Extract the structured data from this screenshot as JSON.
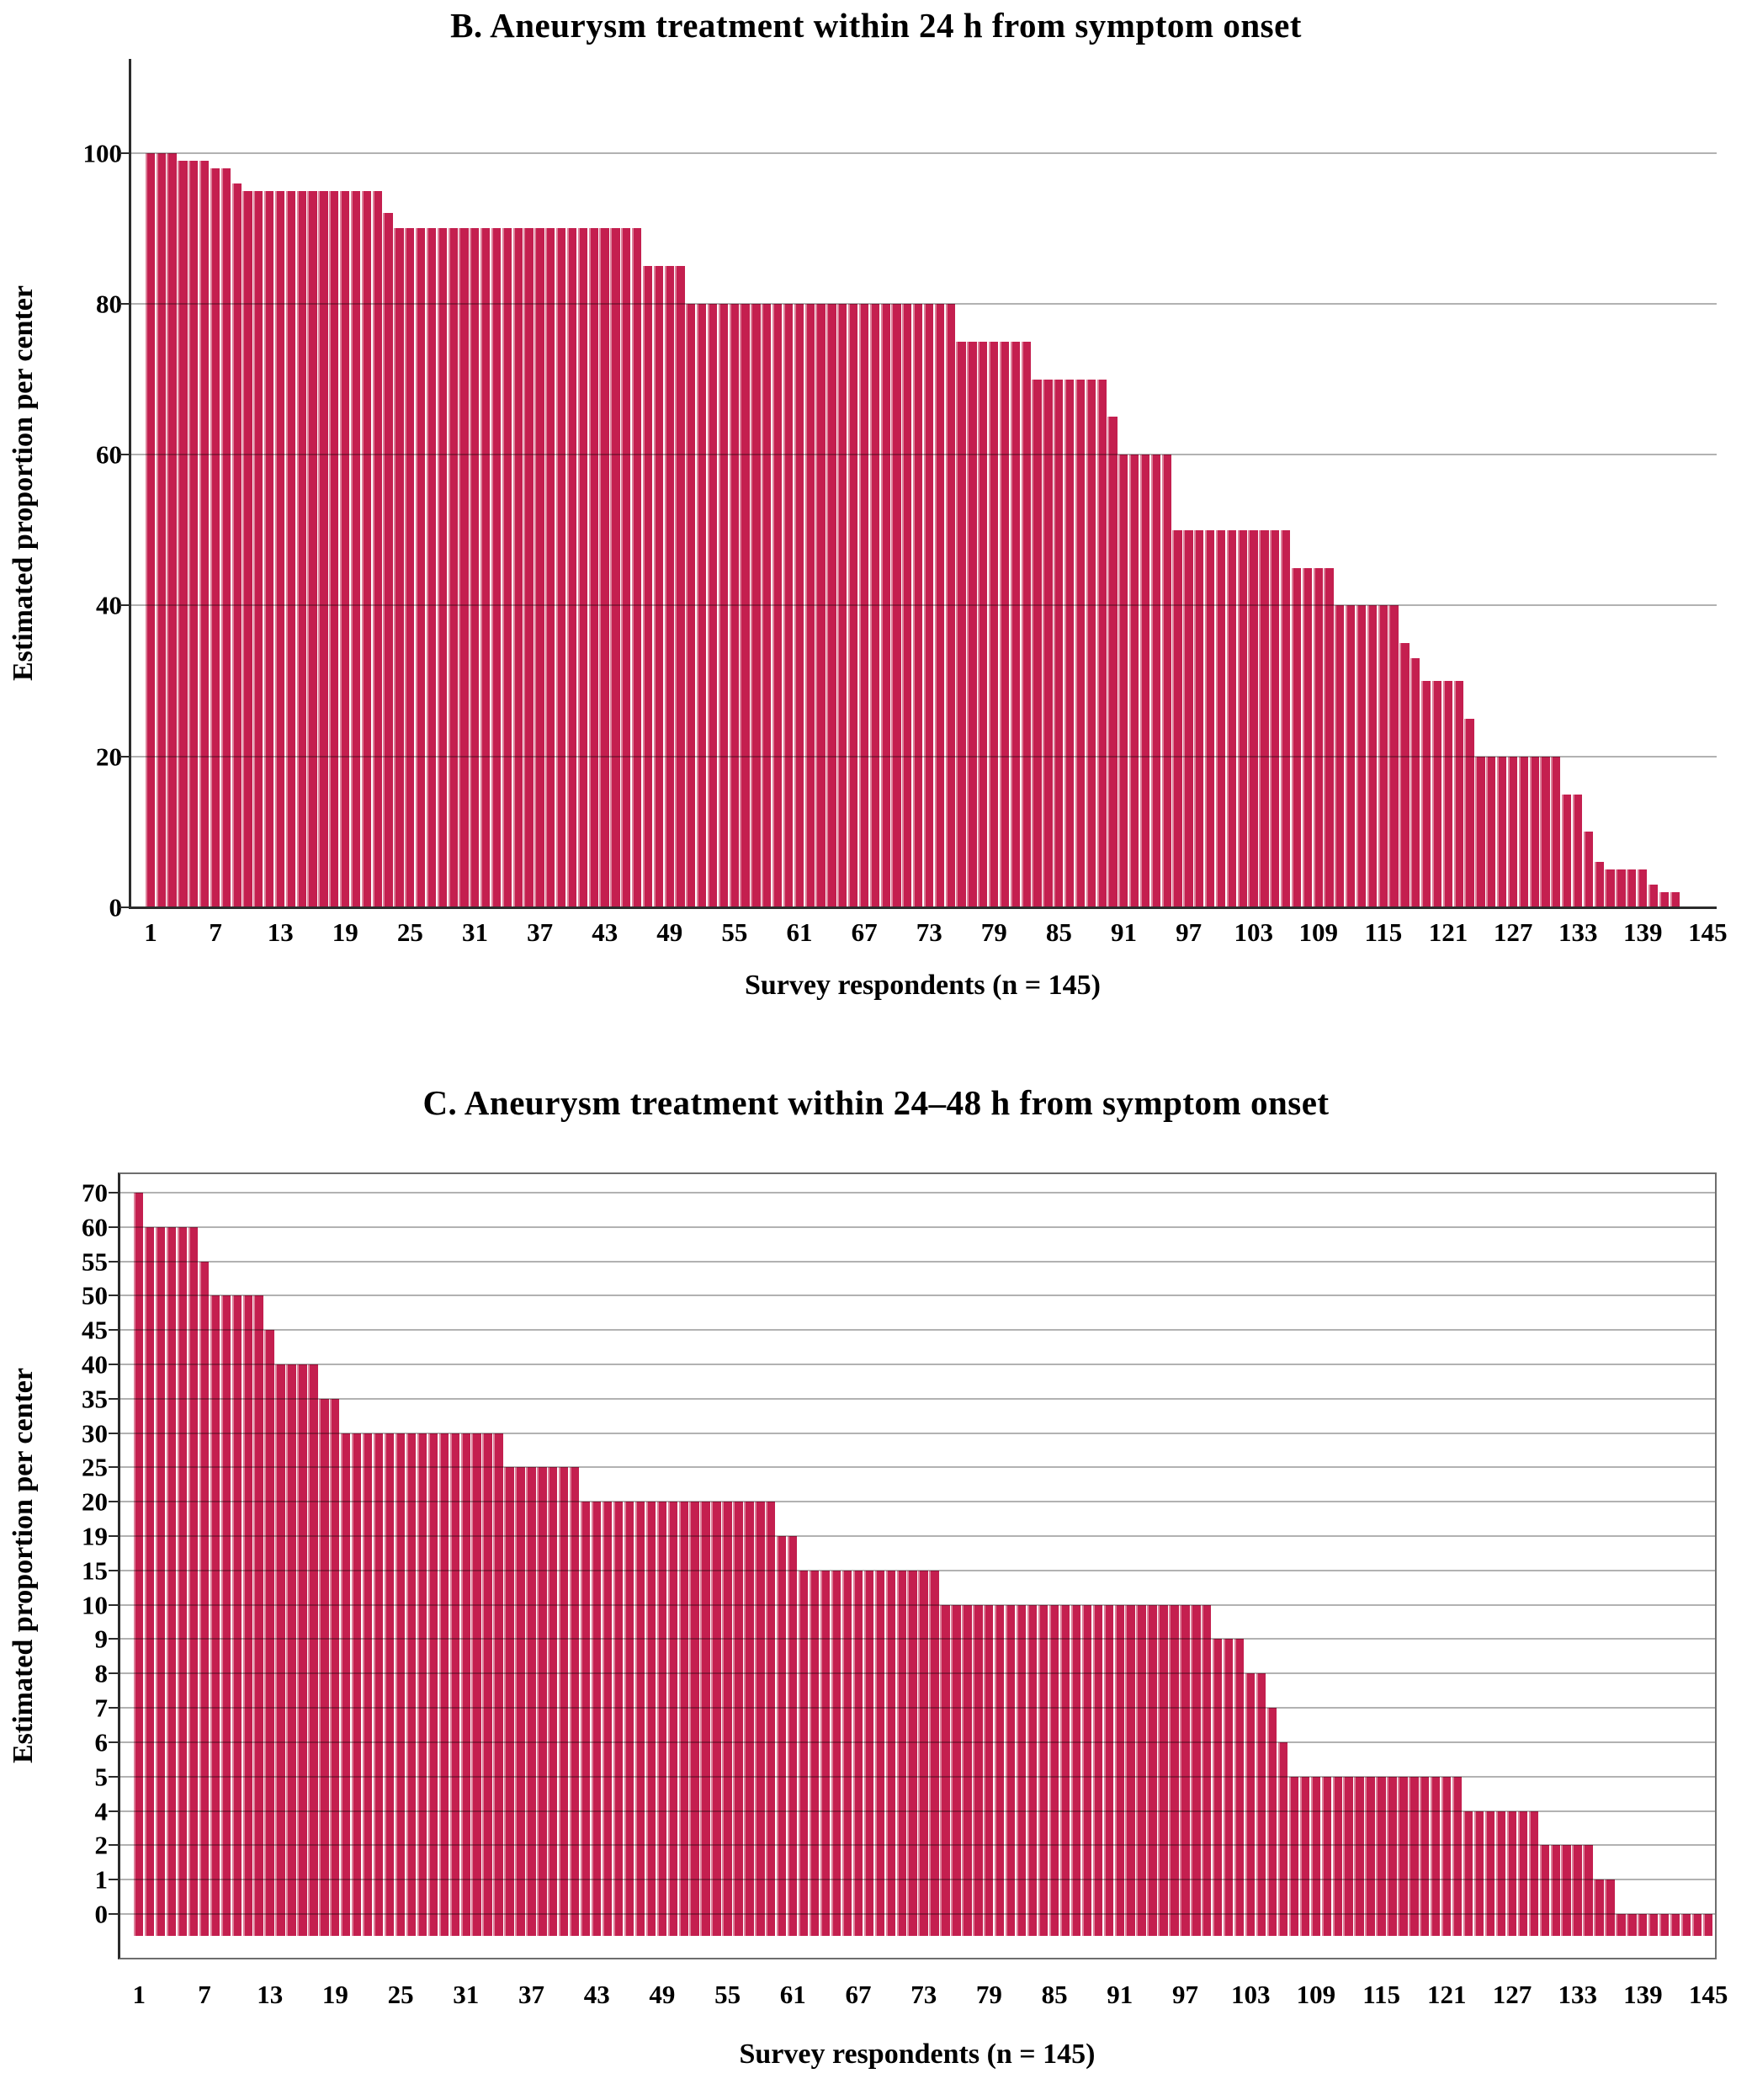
{
  "figure_type": "two-panel survey bar figure",
  "colors": {
    "bar_fill": "#c41f4f",
    "bar_edge_highlight": "#dc8099",
    "gridline": "#ababab",
    "axis": "#2b2b2b",
    "plot_border": "#6e6e6e",
    "background": "#ffffff",
    "text": "#000000"
  },
  "chart_data": [
    {
      "panel": "B",
      "type": "bar",
      "title": "B. Aneurysm treatment within 24 h from symptom onset",
      "xlabel": "Survey respondents (n = 145)",
      "ylabel": "Estimated proportion per center",
      "n_bars": 145,
      "x_tick_labels": [
        1,
        7,
        13,
        19,
        25,
        31,
        37,
        43,
        49,
        55,
        61,
        67,
        73,
        79,
        85,
        91,
        97,
        103,
        109,
        115,
        121,
        127,
        133,
        139,
        145
      ],
      "y_axis": {
        "style": "linear",
        "min": 0,
        "max": 100,
        "tick_labels": [
          0,
          20,
          40,
          60,
          80,
          100
        ],
        "grid": true
      },
      "legend": null,
      "values": [
        100,
        100,
        100,
        99,
        99,
        99,
        98,
        98,
        96,
        95,
        95,
        95,
        95,
        95,
        95,
        95,
        95,
        95,
        95,
        95,
        95,
        95,
        92,
        90,
        90,
        90,
        90,
        90,
        90,
        90,
        90,
        90,
        90,
        90,
        90,
        90,
        90,
        90,
        90,
        90,
        90,
        90,
        90,
        90,
        90,
        90,
        85,
        85,
        85,
        85,
        80,
        80,
        80,
        80,
        80,
        80,
        80,
        80,
        80,
        80,
        80,
        80,
        80,
        80,
        80,
        80,
        80,
        80,
        80,
        80,
        80,
        80,
        80,
        80,
        80,
        75,
        75,
        75,
        75,
        75,
        75,
        75,
        70,
        70,
        70,
        70,
        70,
        70,
        70,
        65,
        60,
        60,
        60,
        60,
        60,
        50,
        50,
        50,
        50,
        50,
        50,
        50,
        50,
        50,
        50,
        50,
        45,
        45,
        45,
        45,
        40,
        40,
        40,
        40,
        40,
        40,
        35,
        33,
        30,
        30,
        30,
        30,
        25,
        20,
        20,
        20,
        20,
        20,
        20,
        20,
        20,
        15,
        15,
        10,
        6,
        5,
        5,
        5,
        5,
        3,
        2,
        2,
        0,
        0,
        0
      ]
    },
    {
      "panel": "C",
      "type": "bar",
      "title": "C. Aneurysm treatment within 24–48 h from symptom onset",
      "xlabel": "Survey respondents (n = 145)",
      "ylabel": "Estimated proportion per center",
      "n_bars": 145,
      "x_tick_labels": [
        1,
        7,
        13,
        19,
        25,
        31,
        37,
        43,
        49,
        55,
        61,
        67,
        73,
        79,
        85,
        91,
        97,
        103,
        109,
        115,
        121,
        127,
        133,
        139,
        145
      ],
      "y_axis": {
        "style": "categorical",
        "tick_labels": [
          0,
          1,
          2,
          4,
          5,
          6,
          7,
          8,
          9,
          10,
          15,
          19,
          20,
          25,
          30,
          35,
          40,
          45,
          50,
          55,
          60,
          70
        ],
        "grid": true
      },
      "legend": null,
      "values": [
        70,
        60,
        60,
        60,
        60,
        60,
        55,
        50,
        50,
        50,
        50,
        50,
        45,
        40,
        40,
        40,
        40,
        35,
        35,
        30,
        30,
        30,
        30,
        30,
        30,
        30,
        30,
        30,
        30,
        30,
        30,
        30,
        30,
        30,
        25,
        25,
        25,
        25,
        25,
        25,
        25,
        20,
        20,
        20,
        20,
        20,
        20,
        20,
        20,
        20,
        20,
        20,
        20,
        20,
        20,
        20,
        20,
        20,
        20,
        19,
        19,
        15,
        15,
        15,
        15,
        15,
        15,
        15,
        15,
        15,
        15,
        15,
        15,
        15,
        10,
        10,
        10,
        10,
        10,
        10,
        10,
        10,
        10,
        10,
        10,
        10,
        10,
        10,
        10,
        10,
        10,
        10,
        10,
        10,
        10,
        10,
        10,
        10,
        10,
        9,
        9,
        9,
        8,
        8,
        7,
        6,
        5,
        5,
        5,
        5,
        5,
        5,
        5,
        5,
        5,
        5,
        5,
        5,
        5,
        5,
        5,
        5,
        4,
        4,
        4,
        4,
        4,
        4,
        4,
        2,
        2,
        2,
        2,
        2,
        1,
        1,
        0,
        0,
        0,
        0,
        0,
        0,
        0,
        0,
        0
      ]
    }
  ]
}
